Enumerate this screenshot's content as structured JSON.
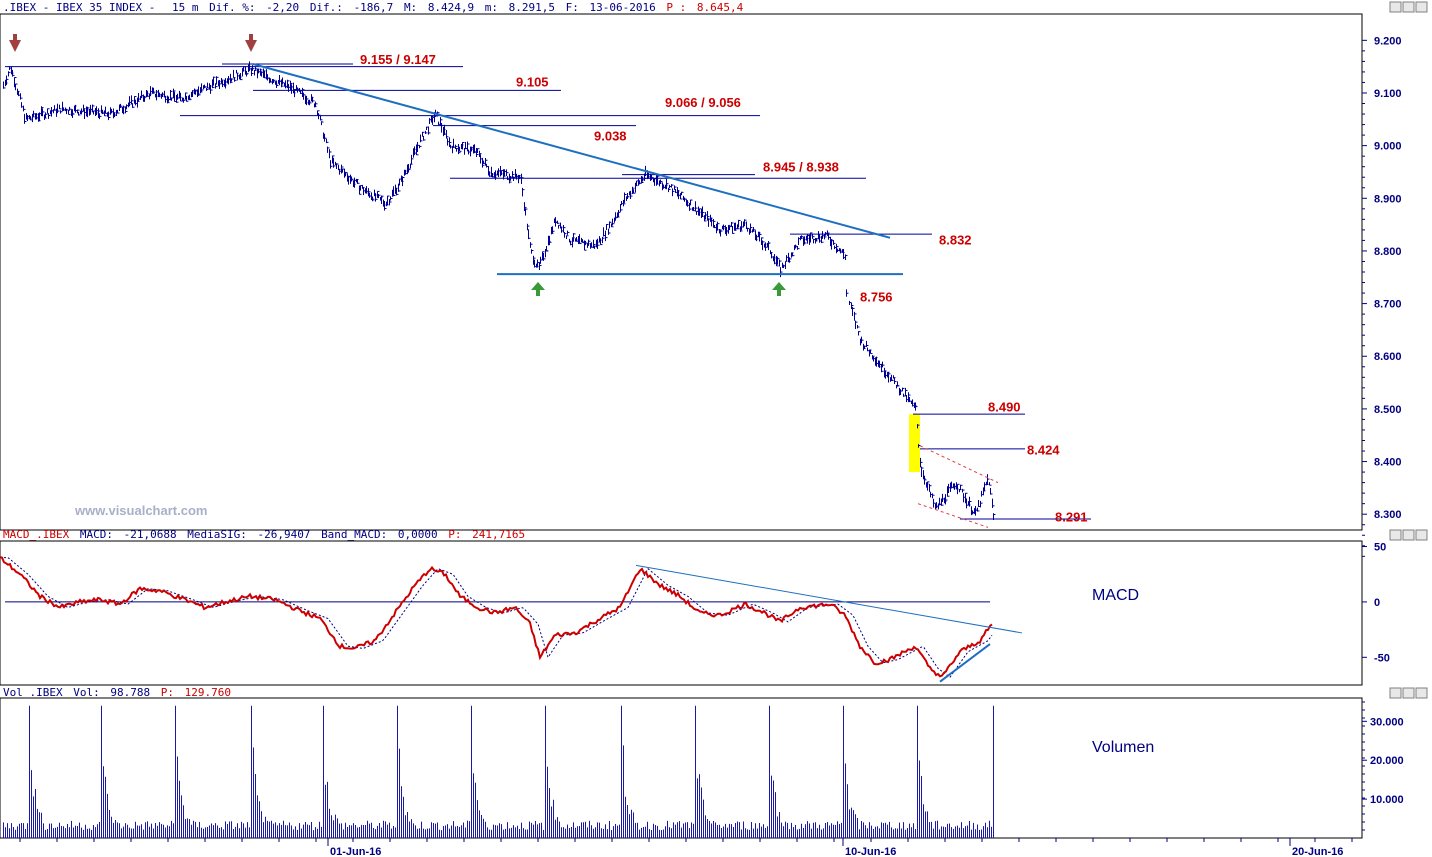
{
  "header": {
    "symbol": ".IBEX - IBEX 35 INDEX -",
    "timeframe": "15 m",
    "fields": [
      {
        "label": "Dif. %:",
        "value": "-2,20"
      },
      {
        "label": "Dif.:",
        "value": "-186,7"
      },
      {
        "label": "M:",
        "value": "8.424,9"
      },
      {
        "label": "m:",
        "value": "8.291,5"
      },
      {
        "label": "F:",
        "value": "13-06-2016"
      }
    ],
    "price_label": "P :",
    "price_value": "8.645,4"
  },
  "watermark": "www.visualchart.com",
  "colors": {
    "price_bars": "#000099",
    "trendline": "#1f6fc0",
    "level_label": "#cc0000",
    "macd_line": "#cc0000",
    "signal_line": "#000080",
    "highlight": "#ffff00",
    "arrow_down": "#a04040",
    "arrow_up": "#3a9a3a",
    "volume": "#1a1aaa"
  },
  "chart_data": [
    {
      "type": "line",
      "panel": "price",
      "series": [
        {
          "name": ".IBEX",
          "style": "bars"
        }
      ],
      "levels": [
        {
          "label": "9.155 / 9.147",
          "value": 9150
        },
        {
          "label": "9.105",
          "value": 9105
        },
        {
          "label": "9.066 / 9.056",
          "value": 9061
        },
        {
          "label": "9.038",
          "value": 9038
        },
        {
          "label": "8.945 / 8.938",
          "value": 8941
        },
        {
          "label": "8.832",
          "value": 8832
        },
        {
          "label": "8.756",
          "value": 8756
        },
        {
          "label": "8.490",
          "value": 8490
        },
        {
          "label": "8.424",
          "value": 8424
        },
        {
          "label": "8.291",
          "value": 8291
        }
      ],
      "yticks": [
        "9.200",
        "9.100",
        "9.000",
        "8.900",
        "8.800",
        "8.700",
        "8.600",
        "8.500",
        "8.400",
        "8.300"
      ],
      "ylim": [
        8270,
        9250
      ],
      "path": [
        [
          0,
          9100
        ],
        [
          10,
          9150
        ],
        [
          25,
          9050
        ],
        [
          60,
          9070
        ],
        [
          110,
          9060
        ],
        [
          150,
          9100
        ],
        [
          180,
          9090
        ],
        [
          250,
          9145
        ],
        [
          290,
          9110
        ],
        [
          315,
          9080
        ],
        [
          330,
          8970
        ],
        [
          360,
          8920
        ],
        [
          385,
          8890
        ],
        [
          400,
          8930
        ],
        [
          420,
          9010
        ],
        [
          435,
          9060
        ],
        [
          450,
          9000
        ],
        [
          475,
          8990
        ],
        [
          490,
          8950
        ],
        [
          520,
          8940
        ],
        [
          530,
          8800
        ],
        [
          538,
          8765
        ],
        [
          555,
          8860
        ],
        [
          570,
          8820
        ],
        [
          595,
          8810
        ],
        [
          610,
          8850
        ],
        [
          625,
          8900
        ],
        [
          645,
          8945
        ],
        [
          670,
          8920
        ],
        [
          695,
          8880
        ],
        [
          720,
          8840
        ],
        [
          745,
          8850
        ],
        [
          770,
          8800
        ],
        [
          780,
          8765
        ],
        [
          800,
          8820
        ],
        [
          825,
          8830
        ],
        [
          845,
          8790
        ],
        [
          846,
          8720
        ],
        [
          860,
          8630
        ],
        [
          890,
          8560
        ],
        [
          915,
          8500
        ],
        [
          920,
          8390
        ],
        [
          935,
          8310
        ],
        [
          955,
          8360
        ],
        [
          975,
          8300
        ],
        [
          988,
          8370
        ],
        [
          993,
          8295
        ]
      ],
      "annotations": {
        "arrow_down": [
          15,
          251
        ],
        "arrow_up": [
          538,
          779
        ]
      }
    },
    {
      "type": "line",
      "panel": "macd",
      "info": {
        "name": "MACD_.IBEX",
        "macd_label": "MACD:",
        "macd": "-21,0688",
        "sig_label": "MediaSIG:",
        "sig": "-26,9407",
        "band_label": "Band_MACD:",
        "band": "0,0000",
        "p_label": "P:",
        "p": "241,7165"
      },
      "title": "MACD",
      "yticks": [
        "50",
        "0",
        "-50"
      ],
      "ylim": [
        -75,
        55
      ],
      "path": [
        [
          0,
          40
        ],
        [
          20,
          25
        ],
        [
          40,
          5
        ],
        [
          60,
          -5
        ],
        [
          80,
          0
        ],
        [
          100,
          2
        ],
        [
          120,
          -2
        ],
        [
          140,
          12
        ],
        [
          160,
          10
        ],
        [
          185,
          2
        ],
        [
          205,
          -5
        ],
        [
          225,
          0
        ],
        [
          250,
          5
        ],
        [
          275,
          2
        ],
        [
          300,
          -8
        ],
        [
          320,
          -15
        ],
        [
          340,
          -40
        ],
        [
          355,
          -42
        ],
        [
          375,
          -35
        ],
        [
          395,
          -10
        ],
        [
          415,
          15
        ],
        [
          430,
          30
        ],
        [
          445,
          25
        ],
        [
          460,
          5
        ],
        [
          478,
          -5
        ],
        [
          495,
          -10
        ],
        [
          515,
          -5
        ],
        [
          530,
          -20
        ],
        [
          540,
          -50
        ],
        [
          555,
          -30
        ],
        [
          575,
          -28
        ],
        [
          600,
          -15
        ],
        [
          620,
          -5
        ],
        [
          640,
          30
        ],
        [
          660,
          15
        ],
        [
          680,
          5
        ],
        [
          700,
          -10
        ],
        [
          720,
          -12
        ],
        [
          745,
          -2
        ],
        [
          765,
          -10
        ],
        [
          780,
          -18
        ],
        [
          800,
          -5
        ],
        [
          830,
          -2
        ],
        [
          845,
          -12
        ],
        [
          860,
          -40
        ],
        [
          875,
          -55
        ],
        [
          890,
          -52
        ],
        [
          915,
          -40
        ],
        [
          930,
          -60
        ],
        [
          942,
          -68
        ],
        [
          960,
          -45
        ],
        [
          980,
          -35
        ],
        [
          992,
          -20
        ]
      ]
    },
    {
      "type": "bar",
      "panel": "volume",
      "info": {
        "name": "Vol_.IBEX",
        "vol_label": "Vol:",
        "vol": "98.788",
        "p_label": "P:",
        "p": "129.760"
      },
      "title": "Volumen",
      "yticks": [
        "30.000",
        "20.000",
        "10.000"
      ],
      "ylim": [
        0,
        36000
      ],
      "spikes_x": [
        28,
        100,
        175,
        250,
        323,
        397,
        471,
        545,
        620,
        694,
        768,
        843,
        917,
        992
      ],
      "spike_value": 34000,
      "base_value": 2000,
      "decay_values": [
        22000,
        16000,
        12000,
        9000,
        7000,
        6000,
        5000
      ]
    }
  ],
  "x_axis": {
    "ticks": [
      {
        "label": "01-Jun-16",
        "pos": 328
      },
      {
        "label": "10-Jun-16",
        "pos": 843
      },
      {
        "label": "20-Jun-16",
        "pos": 1290
      }
    ]
  }
}
